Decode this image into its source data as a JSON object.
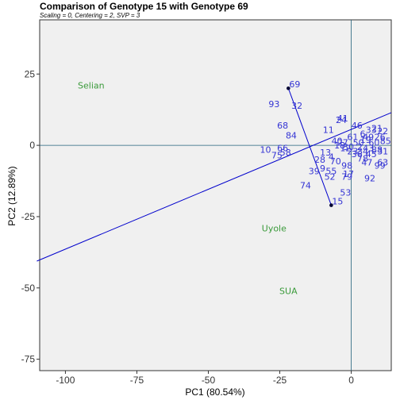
{
  "chart_data": {
    "type": "scatter",
    "title": "Comparison of Genotype 15 with Genotype 69",
    "subtitle": "Scaling = 0, Centering = 2, SVP = 3",
    "xlabel": "PC1 (80.54%)",
    "ylabel": "PC2 (12.89%)",
    "xlim": [
      -109,
      14
    ],
    "ylim": [
      -79,
      44
    ],
    "xticks": [
      -100,
      -75,
      -50,
      -25,
      0
    ],
    "yticks": [
      -75,
      -50,
      -25,
      0,
      25
    ],
    "grid": false,
    "legend": "none",
    "colors": {
      "genotype": "#3535d4",
      "environment": "#3a9a3a",
      "background": "#f0f0f0",
      "reference_lines": "#1f5f7a"
    },
    "environments": [
      {
        "label": "Selian",
        "x": -91,
        "y": 21
      },
      {
        "label": "Uyole",
        "x": -27,
        "y": -29
      },
      {
        "label": "SUA",
        "x": -22,
        "y": -51
      }
    ],
    "compared": [
      {
        "label": "69",
        "x": -22,
        "y": 20
      },
      {
        "label": "15",
        "x": -7,
        "y": -21
      }
    ],
    "comparison_line_end": {
      "x": -110,
      "y": -40.6
    },
    "genotypes": [
      {
        "label": "93",
        "x": -27,
        "y": 14.5
      },
      {
        "label": "32",
        "x": -19,
        "y": 14
      },
      {
        "label": "68",
        "x": -24,
        "y": 7
      },
      {
        "label": "84",
        "x": -21,
        "y": 3.5
      },
      {
        "label": "11",
        "x": -8,
        "y": 5.5
      },
      {
        "label": "41",
        "x": -3,
        "y": 9.5
      },
      {
        "label": "24",
        "x": -3.5,
        "y": 9
      },
      {
        "label": "46",
        "x": 2,
        "y": 7
      },
      {
        "label": "66",
        "x": -24,
        "y": -1
      },
      {
        "label": "10",
        "x": -30,
        "y": -1.5
      },
      {
        "label": "58",
        "x": -23,
        "y": -2.5
      },
      {
        "label": "75",
        "x": -26,
        "y": -3.5
      },
      {
        "label": "13",
        "x": -9,
        "y": -2.5
      },
      {
        "label": "28",
        "x": -11,
        "y": -5
      },
      {
        "label": "70",
        "x": -5.5,
        "y": -5.5
      },
      {
        "label": "4",
        "x": -7,
        "y": -4
      },
      {
        "label": "9",
        "x": -10,
        "y": -8
      },
      {
        "label": "39",
        "x": -13,
        "y": -9
      },
      {
        "label": "55",
        "x": -7,
        "y": -9
      },
      {
        "label": "52",
        "x": -7.5,
        "y": -11
      },
      {
        "label": "74",
        "x": -16,
        "y": -14
      },
      {
        "label": "98",
        "x": -1.5,
        "y": -7
      },
      {
        "label": "17",
        "x": -1,
        "y": -10
      },
      {
        "label": "79",
        "x": -1.5,
        "y": -11
      },
      {
        "label": "53",
        "x": -2,
        "y": -16.5
      },
      {
        "label": "92",
        "x": 6.5,
        "y": -11.5
      },
      {
        "label": "63",
        "x": 11,
        "y": -6
      },
      {
        "label": "99",
        "x": 10,
        "y": -7
      },
      {
        "label": "47",
        "x": 5.5,
        "y": -6
      },
      {
        "label": "78",
        "x": 4,
        "y": -4.5
      },
      {
        "label": "27",
        "x": -3,
        "y": 1
      },
      {
        "label": "40",
        "x": -5,
        "y": 1.5
      },
      {
        "label": "18",
        "x": -4,
        "y": 0
      },
      {
        "label": "30",
        "x": -1,
        "y": -0.5
      },
      {
        "label": "12",
        "x": -2,
        "y": -1
      },
      {
        "label": "23",
        "x": 0.5,
        "y": -2
      },
      {
        "label": "36",
        "x": 2,
        "y": -3
      },
      {
        "label": "2",
        "x": 3,
        "y": -0.5
      },
      {
        "label": "19",
        "x": 5,
        "y": 2
      },
      {
        "label": "33",
        "x": 7,
        "y": 5.5
      },
      {
        "label": "21",
        "x": 9,
        "y": 6
      },
      {
        "label": "22",
        "x": 11,
        "y": 5
      },
      {
        "label": "49",
        "x": 6,
        "y": 3
      },
      {
        "label": "60",
        "x": 8,
        "y": 1
      },
      {
        "label": "85",
        "x": 12,
        "y": 1.5
      },
      {
        "label": "26",
        "x": 10,
        "y": 3
      },
      {
        "label": "6",
        "x": 4,
        "y": 4
      },
      {
        "label": "43",
        "x": 6,
        "y": -1
      },
      {
        "label": "88",
        "x": 9,
        "y": -1.5
      },
      {
        "label": "31",
        "x": 11,
        "y": -2
      },
      {
        "label": "45",
        "x": 7,
        "y": -3
      },
      {
        "label": "50",
        "x": 2.5,
        "y": 1
      },
      {
        "label": "61",
        "x": 0.5,
        "y": 3
      },
      {
        "label": "34",
        "x": 4,
        "y": -2
      }
    ]
  }
}
